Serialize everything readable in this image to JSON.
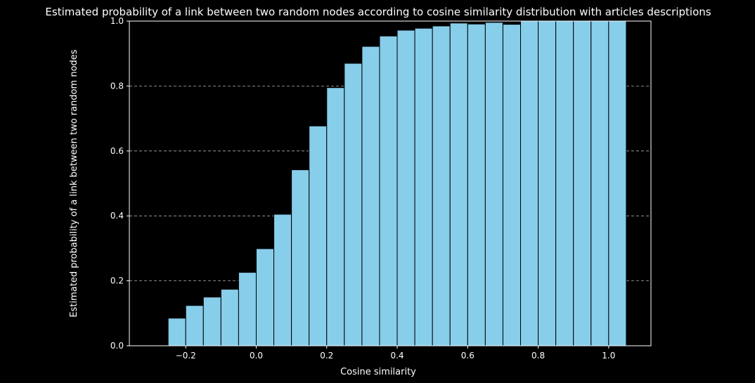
{
  "chart_data": {
    "type": "bar",
    "title": "Estimated probability of a link between two random nodes according to cosine similarity distribution with articles descriptions",
    "xlabel": "Cosine similarity",
    "ylabel": "Estimated probability of a link between two random nodes",
    "xlim": [
      -0.36,
      1.12
    ],
    "ylim": [
      0,
      1.0
    ],
    "bin_width": 0.05,
    "x": [
      -0.225,
      -0.175,
      -0.125,
      -0.075,
      -0.025,
      0.025,
      0.075,
      0.125,
      0.175,
      0.225,
      0.275,
      0.325,
      0.375,
      0.425,
      0.475,
      0.525,
      0.575,
      0.625,
      0.675,
      0.725,
      0.775,
      0.825,
      0.875,
      0.925,
      0.975,
      1.025
    ],
    "values": [
      0.085,
      0.124,
      0.15,
      0.174,
      0.226,
      0.299,
      0.405,
      0.542,
      0.677,
      0.795,
      0.87,
      0.922,
      0.954,
      0.972,
      0.978,
      0.985,
      0.994,
      0.991,
      0.996,
      0.99,
      1.0,
      1.0,
      1.0,
      1.0,
      1.0,
      1.0
    ],
    "xticks": [
      -0.2,
      0.0,
      0.2,
      0.4,
      0.6,
      0.8,
      1.0
    ],
    "xtick_labels": [
      "−0.2",
      "0.0",
      "0.2",
      "0.4",
      "0.6",
      "0.8",
      "1.0"
    ],
    "yticks": [
      0.0,
      0.2,
      0.4,
      0.6,
      0.8,
      1.0
    ],
    "ytick_labels": [
      "0.0",
      "0.2",
      "0.4",
      "0.6",
      "0.8",
      "1.0"
    ],
    "grid": "y-dashed",
    "bar_color": "#87ceeb",
    "edge_color": "#000000",
    "background": "#000000",
    "foreground": "#ffffff"
  }
}
